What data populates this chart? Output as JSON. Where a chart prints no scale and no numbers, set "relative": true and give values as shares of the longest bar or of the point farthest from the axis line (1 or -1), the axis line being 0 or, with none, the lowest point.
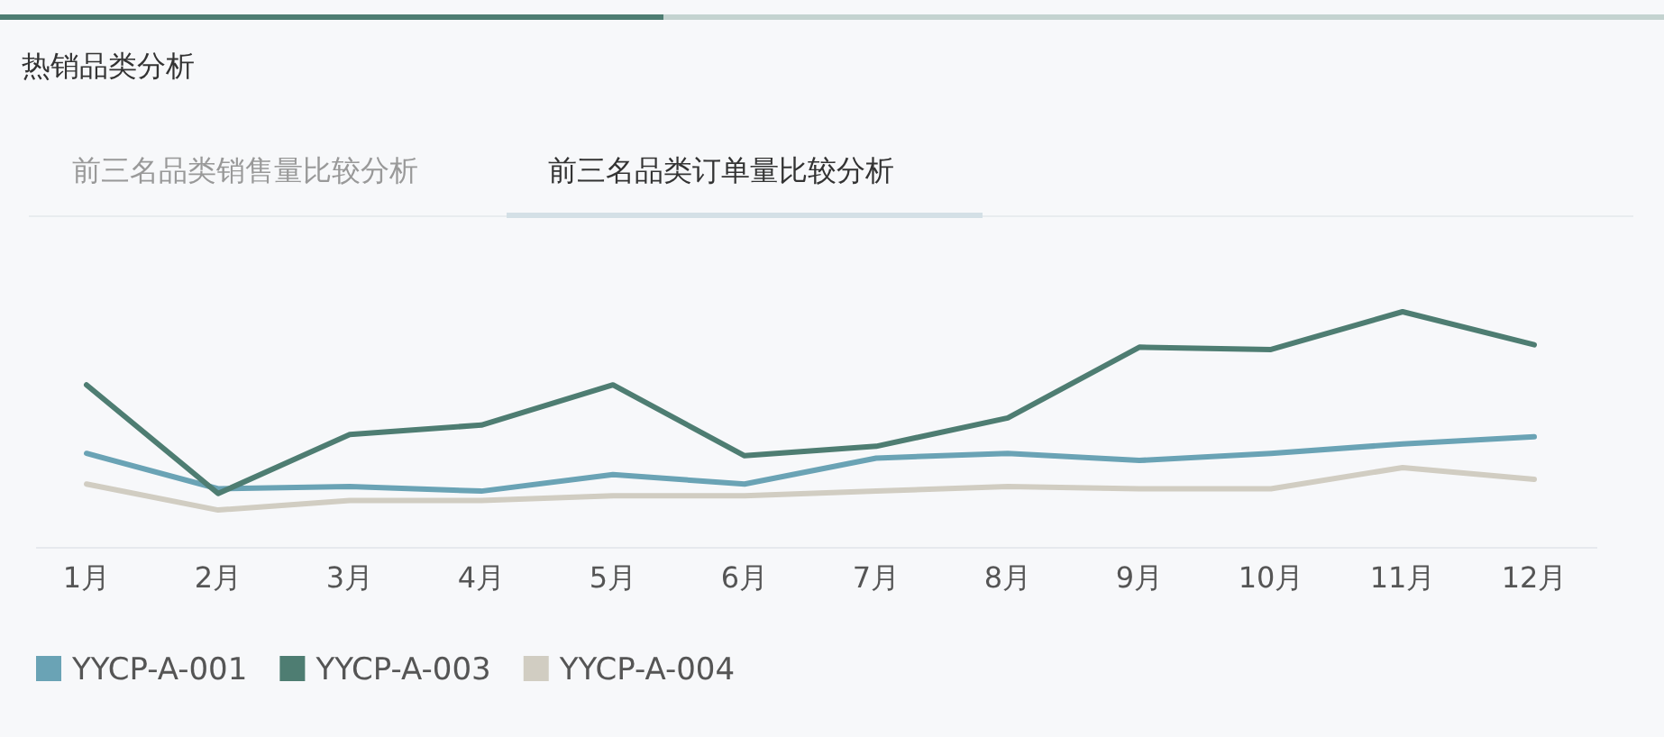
{
  "chart_data": {
    "type": "line",
    "title": "热销品类分析",
    "annotations": [
      "前三名品类销售量比较分析",
      "前三名品类订单量比较分析"
    ],
    "categories": [
      "1月",
      "2月",
      "3月",
      "4月",
      "5月",
      "6月",
      "7月",
      "8月",
      "9月",
      "10月",
      "11月",
      "12月"
    ],
    "relative": true,
    "legend": "bottom left",
    "marker": "none",
    "line_style": "solid",
    "series": [
      {
        "name": "YYCP-A-001",
        "color": "#6aa3b5",
        "values": [
          0.4,
          0.25,
          0.26,
          0.24,
          0.31,
          0.27,
          0.38,
          0.4,
          0.37,
          0.4,
          0.44,
          0.47
        ]
      },
      {
        "name": "YYCP-A-003",
        "color": "#4e7d72",
        "values": [
          0.69,
          0.23,
          0.48,
          0.52,
          0.69,
          0.39,
          0.43,
          0.55,
          0.85,
          0.84,
          1,
          0.86
        ]
      },
      {
        "name": "YYCP-A-004",
        "color": "#d1cdc2",
        "values": [
          0.27,
          0.16,
          0.2,
          0.2,
          0.22,
          0.22,
          0.24,
          0.26,
          0.25,
          0.25,
          0.34,
          0.29
        ]
      }
    ]
  }
}
